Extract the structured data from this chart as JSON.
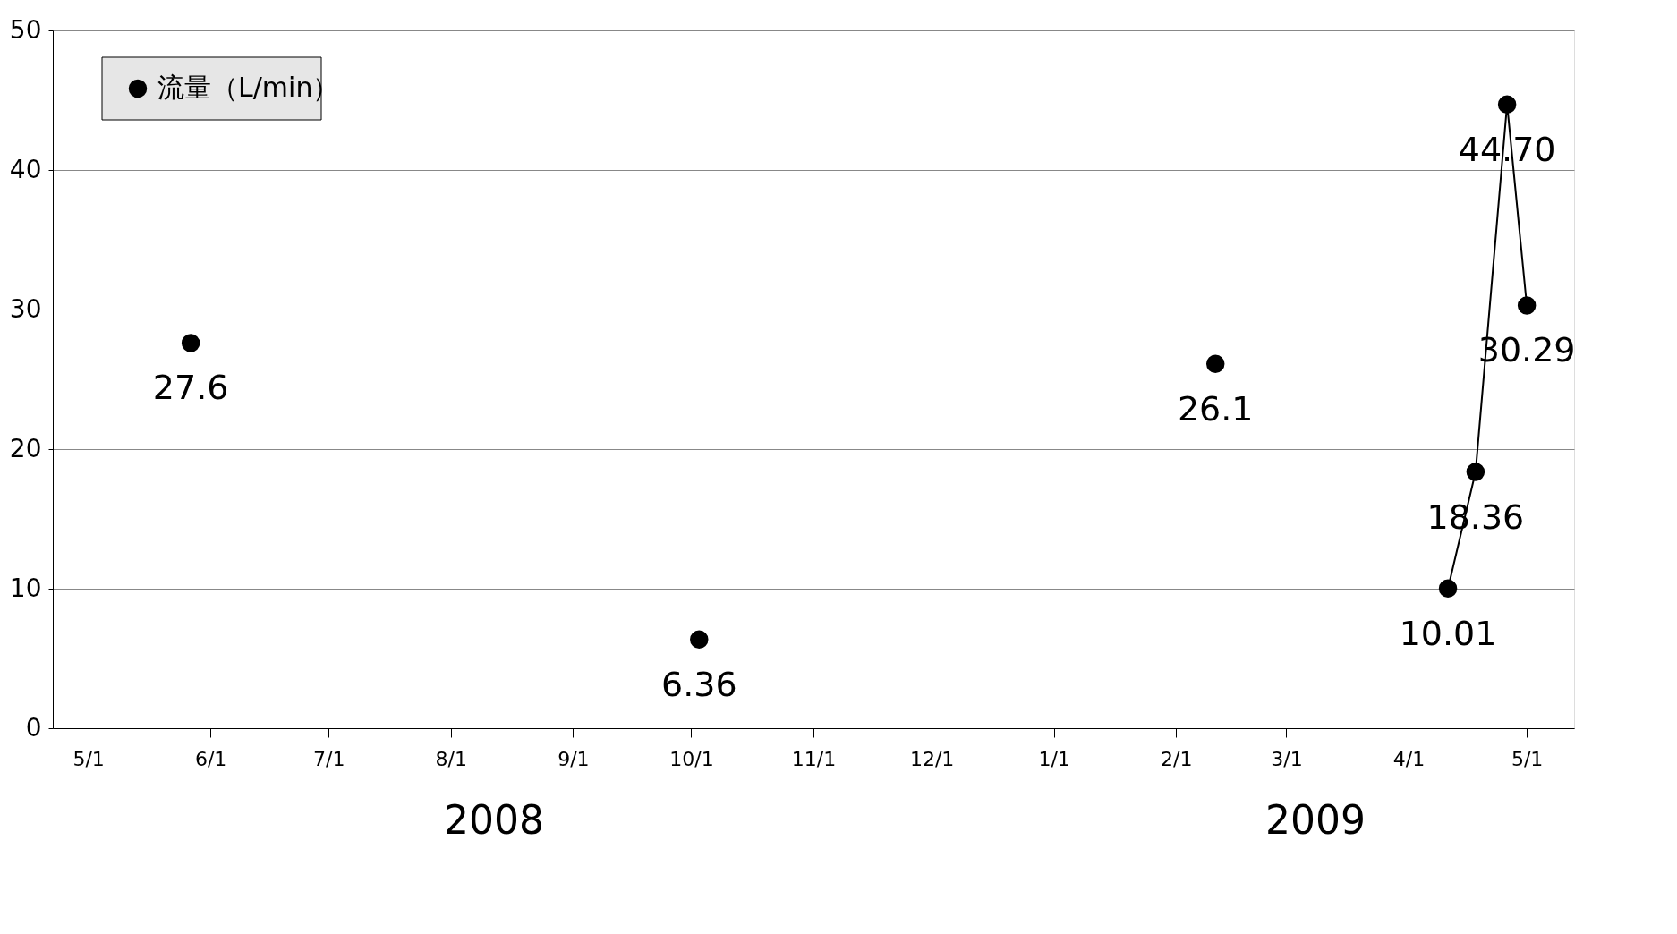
{
  "chart_data": {
    "type": "scatter",
    "xlim": [
      "2008-04-22",
      "2009-05-13"
    ],
    "ylim": [
      0,
      50
    ],
    "yticks": [
      0,
      10,
      20,
      30,
      40,
      50
    ],
    "xticks": [
      {
        "value": "2008-05-01",
        "label": "5/1"
      },
      {
        "value": "2008-06-01",
        "label": "6/1"
      },
      {
        "value": "2008-07-01",
        "label": "7/1"
      },
      {
        "value": "2008-08-01",
        "label": "8/1"
      },
      {
        "value": "2008-09-01",
        "label": "9/1"
      },
      {
        "value": "2008-10-01",
        "label": "10/1"
      },
      {
        "value": "2008-11-01",
        "label": "11/1"
      },
      {
        "value": "2008-12-01",
        "label": "12/1"
      },
      {
        "value": "2009-01-01",
        "label": "1/1"
      },
      {
        "value": "2009-02-01",
        "label": "2/1"
      },
      {
        "value": "2009-03-01",
        "label": "3/1"
      },
      {
        "value": "2009-04-01",
        "label": "4/1"
      },
      {
        "value": "2009-05-01",
        "label": "5/1"
      }
    ],
    "series": [
      {
        "name": "流量（L/min）",
        "color": "#000000",
        "x": [
          "2008-05-27",
          "2008-10-03",
          "2009-02-11"
        ],
        "values": [
          27.6,
          6.36,
          26.1
        ],
        "value_labels": [
          "27.6",
          "6.36",
          "26.1"
        ]
      },
      {
        "type": "line",
        "color": "#000000",
        "x": [
          "2009-04-11",
          "2009-04-18",
          "2009-04-26",
          "2009-05-01"
        ],
        "values": [
          10.01,
          18.36,
          44.7,
          30.29
        ],
        "value_labels": [
          "10.01",
          "18.36",
          "44.70",
          "30.29"
        ]
      }
    ],
    "marker": "circle",
    "line_style": "solid",
    "grid": "y",
    "legend": "top left",
    "annotations": [
      "2008",
      "2009"
    ]
  }
}
